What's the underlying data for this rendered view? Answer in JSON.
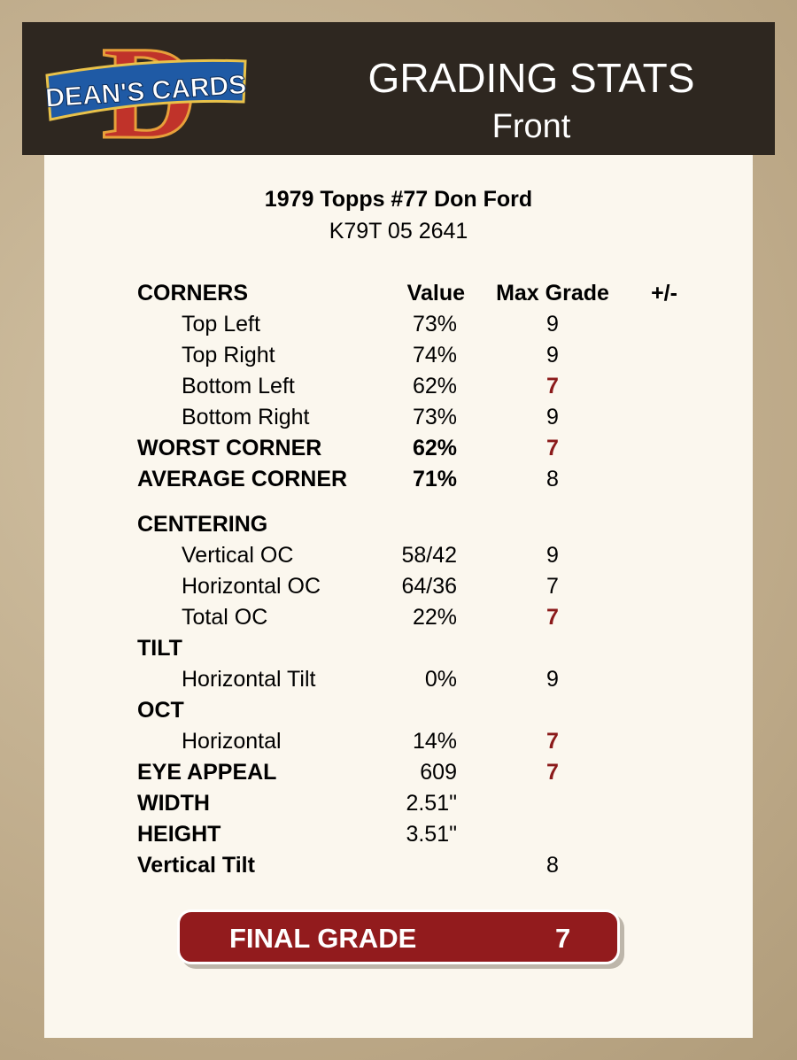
{
  "header": {
    "logo": "DEAN'S CARDS",
    "title": "GRADING STATS",
    "subtitle": "Front"
  },
  "card": {
    "name": "1979 Topps #77 Don Ford",
    "id": "K79T 05 2641"
  },
  "table": {
    "columns": [
      "CORNERS",
      "Value",
      "Max Grade",
      "+/-"
    ],
    "rows": [
      [
        "Top Left",
        "73%",
        "9"
      ],
      [
        "Top Right",
        "74%",
        "9"
      ],
      [
        "Bottom Left",
        "62%",
        "7"
      ],
      [
        "Bottom Right",
        "73%",
        "9"
      ],
      [
        "WORST CORNER",
        "62%",
        "7"
      ],
      [
        "AVERAGE CORNER",
        "71%",
        "8"
      ],
      [
        "CENTERING"
      ],
      [
        "Vertical OC",
        "58/42",
        "9"
      ],
      [
        "Horizontal OC",
        "64/36",
        "7"
      ],
      [
        "Total OC",
        "22%",
        "7"
      ],
      [
        "TILT"
      ],
      [
        "Horizontal Tilt",
        "0%",
        "9"
      ],
      [
        "OCT"
      ],
      [
        "Horizontal",
        "14%",
        "7"
      ],
      [
        "EYE APPEAL",
        "609",
        "7"
      ],
      [
        "WIDTH",
        "2.51\""
      ],
      [
        "HEIGHT",
        "3.51\""
      ],
      [
        "Vertical Tilt",
        null,
        "8"
      ]
    ]
  },
  "final": {
    "label": "FINAL GRADE",
    "value": "7"
  }
}
